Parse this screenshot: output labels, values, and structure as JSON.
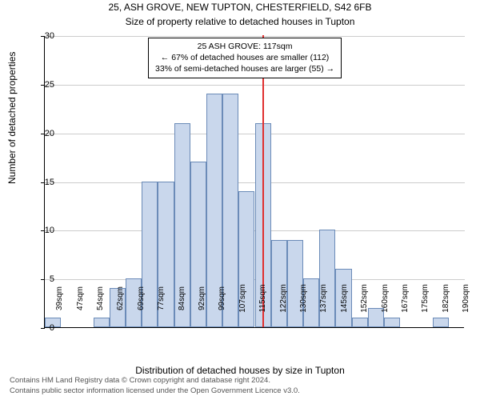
{
  "titles": {
    "line1": "25, ASH GROVE, NEW TUPTON, CHESTERFIELD, S42 6FB",
    "line2": "Size of property relative to detached houses in Tupton"
  },
  "ylabel": "Number of detached properties",
  "xlabel": "Distribution of detached houses by size in Tupton",
  "footer": {
    "line1": "Contains HM Land Registry data © Crown copyright and database right 2024.",
    "line2": "Contains public sector information licensed under the Open Government Licence v3.0."
  },
  "chart": {
    "type": "histogram",
    "ylim": [
      0,
      30
    ],
    "ytick_step": 5,
    "background_color": "#ffffff",
    "grid_color": "#cccccc",
    "bar_fill": "#c9d7ec",
    "bar_stroke": "#6b8bb8",
    "marker_color": "#e03030",
    "marker_x_value": 117,
    "x_tick_labels": [
      "39sqm",
      "47sqm",
      "54sqm",
      "62sqm",
      "69sqm",
      "77sqm",
      "84sqm",
      "92sqm",
      "99sqm",
      "107sqm",
      "115sqm",
      "122sqm",
      "130sqm",
      "137sqm",
      "145sqm",
      "152sqm",
      "160sqm",
      "167sqm",
      "175sqm",
      "182sqm",
      "190sqm"
    ],
    "bars": [
      {
        "x": 39,
        "h": 1
      },
      {
        "x": 57,
        "h": 1
      },
      {
        "x": 63,
        "h": 4
      },
      {
        "x": 69,
        "h": 5
      },
      {
        "x": 75,
        "h": 15
      },
      {
        "x": 81,
        "h": 15
      },
      {
        "x": 87,
        "h": 21
      },
      {
        "x": 93,
        "h": 17
      },
      {
        "x": 99,
        "h": 24
      },
      {
        "x": 105,
        "h": 24
      },
      {
        "x": 111,
        "h": 14
      },
      {
        "x": 117,
        "h": 21
      },
      {
        "x": 123,
        "h": 9
      },
      {
        "x": 129,
        "h": 9
      },
      {
        "x": 135,
        "h": 5
      },
      {
        "x": 141,
        "h": 10
      },
      {
        "x": 147,
        "h": 6
      },
      {
        "x": 153,
        "h": 1
      },
      {
        "x": 159,
        "h": 2
      },
      {
        "x": 165,
        "h": 1
      },
      {
        "x": 183,
        "h": 1
      }
    ],
    "x_domain": [
      36,
      192
    ],
    "bar_width_units": 6
  },
  "annotation": {
    "line1": "25 ASH GROVE: 117sqm",
    "line2": "← 67% of detached houses are smaller (112)",
    "line3": "33% of semi-detached houses are larger (55) →"
  }
}
